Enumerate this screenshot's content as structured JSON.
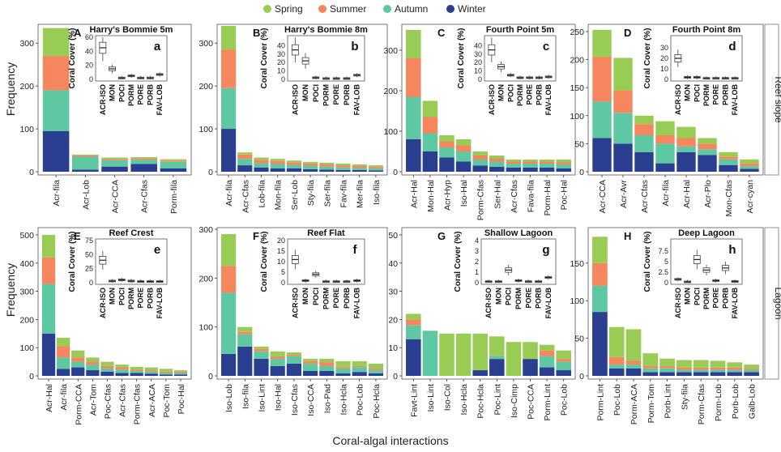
{
  "legend": [
    {
      "label": "Spring",
      "color": "#99cc55"
    },
    {
      "label": "Summer",
      "color": "#f6865e"
    },
    {
      "label": "Autumn",
      "color": "#5ec8a2"
    },
    {
      "label": "Winter",
      "color": "#2a3f8f"
    }
  ],
  "xlabel": "Coral-algal interactions",
  "ylabel": "Frequency",
  "inset_ylabel": "Coral Cover (%)",
  "row_labels": [
    "Reef slope",
    "Lagoon"
  ],
  "chart_data": [
    {
      "type": "bar",
      "letter": "A",
      "inset_letter": "a",
      "site": "Harry's Bommie 5m",
      "ylim": [
        0,
        340
      ],
      "ticks": [
        0,
        100,
        200,
        300
      ],
      "categories": [
        "Acr-fila",
        "Acr-Lob",
        "Acr-CCA",
        "Acr-Cfas",
        "Porm-fila"
      ],
      "series": [
        {
          "name": "Winter",
          "values": [
            95,
            5,
            12,
            18,
            8
          ]
        },
        {
          "name": "Autumn",
          "values": [
            95,
            30,
            15,
            10,
            15
          ]
        },
        {
          "name": "Summer",
          "values": [
            80,
            3,
            3,
            3,
            3
          ]
        },
        {
          "name": "Spring",
          "values": [
            65,
            2,
            3,
            3,
            3
          ]
        }
      ],
      "inset": {
        "categories": [
          "ACR-ISO",
          "MON",
          "POCI",
          "PORM",
          "PORE",
          "PORB",
          "FAV-LOB"
        ],
        "medians": [
          45,
          15,
          2,
          5,
          2,
          2,
          7
        ],
        "ylim": [
          0,
          60
        ],
        "ticks": [
          0,
          20,
          40,
          60
        ]
      }
    },
    {
      "type": "bar",
      "letter": "B",
      "inset_letter": "b",
      "site": "Harry's Bommie 8m",
      "ylim": [
        0,
        340
      ],
      "ticks": [
        0,
        100,
        200,
        300
      ],
      "categories": [
        "Acr-fila",
        "Acr-Cfas",
        "Lob-fila",
        "Mon-fila",
        "Ser-Lob",
        "Sty-fila",
        "Ser-fila",
        "Fav-fila",
        "Mer-fila",
        "Iso-fila"
      ],
      "series": [
        {
          "name": "Winter",
          "values": [
            100,
            15,
            10,
            8,
            8,
            6,
            5,
            4,
            4,
            3
          ]
        },
        {
          "name": "Autumn",
          "values": [
            95,
            15,
            10,
            10,
            8,
            8,
            7,
            6,
            5,
            5
          ]
        },
        {
          "name": "Summer",
          "values": [
            90,
            10,
            8,
            7,
            6,
            5,
            5,
            5,
            5,
            4
          ]
        },
        {
          "name": "Spring",
          "values": [
            55,
            5,
            5,
            5,
            4,
            4,
            4,
            4,
            3,
            3
          ]
        }
      ],
      "inset": {
        "categories": [
          "ACR-ISO",
          "MON",
          "POCI",
          "PORM",
          "PORE",
          "PORB",
          "FAV-LOB"
        ],
        "medians": [
          35,
          22,
          2,
          1,
          1,
          1,
          5
        ],
        "ylim": [
          0,
          50
        ],
        "ticks": [
          0,
          10,
          20,
          30,
          40
        ]
      }
    },
    {
      "type": "bar",
      "letter": "C",
      "inset_letter": "c",
      "site": "Fourth Point 5m",
      "ylim": [
        0,
        360
      ],
      "ticks": [
        0,
        100,
        200,
        300
      ],
      "categories": [
        "Acr-Hal",
        "Mon-Hal",
        "Acr-Hyp",
        "Iso-Hal",
        "Porm-Cfas",
        "Ser-Hal",
        "Acr-Cfas",
        "Fava-fila",
        "Porm-Hal",
        "Poc-Hal"
      ],
      "series": [
        {
          "name": "Winter",
          "values": [
            80,
            50,
            35,
            25,
            15,
            12,
            10,
            10,
            10,
            8
          ]
        },
        {
          "name": "Autumn",
          "values": [
            105,
            45,
            25,
            25,
            15,
            13,
            10,
            10,
            10,
            10
          ]
        },
        {
          "name": "Summer",
          "values": [
            95,
            40,
            15,
            15,
            10,
            8,
            5,
            5,
            5,
            5
          ]
        },
        {
          "name": "Spring",
          "values": [
            70,
            40,
            15,
            15,
            10,
            7,
            5,
            5,
            5,
            7
          ]
        }
      ],
      "inset": {
        "categories": [
          "ACR-ISO",
          "MON",
          "POCI",
          "PORM",
          "PORE",
          "PORB",
          "FAV-LOB"
        ],
        "medians": [
          35,
          15,
          5,
          2,
          2,
          2,
          3
        ],
        "ylim": [
          0,
          50
        ],
        "ticks": [
          0,
          10,
          20,
          30,
          40
        ]
      }
    },
    {
      "type": "bar",
      "letter": "D",
      "inset_letter": "d",
      "site": "Fourth Point 8m",
      "ylim": [
        0,
        260
      ],
      "ticks": [
        0,
        50,
        100,
        150,
        200,
        250
      ],
      "categories": [
        "Acr-CCA",
        "Acr-Avr",
        "Acr-Cfas",
        "Acr-fila",
        "Acr-Hal",
        "Acr-Plo",
        "Mon-Cfas",
        "Acr-cyan"
      ],
      "series": [
        {
          "name": "Winter",
          "values": [
            60,
            50,
            35,
            15,
            35,
            30,
            12,
            5
          ]
        },
        {
          "name": "Autumn",
          "values": [
            65,
            55,
            30,
            35,
            10,
            10,
            10,
            5
          ]
        },
        {
          "name": "Summer",
          "values": [
            80,
            40,
            20,
            15,
            15,
            10,
            5,
            5
          ]
        },
        {
          "name": "Spring",
          "values": [
            48,
            58,
            15,
            25,
            20,
            10,
            8,
            7
          ]
        }
      ],
      "inset": {
        "categories": [
          "ACR-ISO",
          "MON",
          "POCI",
          "PORM",
          "PORE",
          "PORB",
          "FAV-LOB"
        ],
        "medians": [
          20,
          2,
          2,
          1,
          1,
          1,
          1
        ],
        "ylim": [
          0,
          40
        ],
        "ticks": [
          0,
          10,
          20,
          30
        ]
      }
    },
    {
      "type": "bar",
      "letter": "E",
      "inset_letter": "e",
      "site": "Reef Crest",
      "ylim": [
        0,
        520
      ],
      "ticks": [
        0,
        100,
        200,
        300,
        400,
        500
      ],
      "categories": [
        "Acr-Hal",
        "Acr-fila",
        "Porm-CCA",
        "Acr-Tom",
        "Poc-Cfas",
        "Acr-Cfas",
        "Porm-Cfas",
        "Acr-ACA",
        "Poc-Tom",
        "Poc-Hal"
      ],
      "series": [
        {
          "name": "Winter",
          "values": [
            150,
            25,
            30,
            20,
            15,
            10,
            10,
            8,
            5,
            5
          ]
        },
        {
          "name": "Autumn",
          "values": [
            175,
            40,
            20,
            20,
            12,
            12,
            7,
            7,
            5,
            5
          ]
        },
        {
          "name": "Summer",
          "values": [
            95,
            40,
            15,
            10,
            8,
            8,
            5,
            5,
            5,
            5
          ]
        },
        {
          "name": "Spring",
          "values": [
            80,
            30,
            25,
            15,
            15,
            10,
            10,
            10,
            10,
            5
          ]
        }
      ],
      "inset": {
        "categories": [
          "ACR-ISO",
          "MON",
          "POCI",
          "PORM",
          "PORE",
          "PORB",
          "FAV-LOB"
        ],
        "medians": [
          40,
          3,
          5,
          3,
          2,
          2,
          2
        ],
        "ylim": [
          0,
          75
        ],
        "ticks": [
          0,
          25,
          50,
          75
        ]
      }
    },
    {
      "type": "bar",
      "letter": "F",
      "inset_letter": "f",
      "site": "Reef Flat",
      "ylim": [
        0,
        300
      ],
      "ticks": [
        0,
        100,
        200,
        300
      ],
      "categories": [
        "Iso-Lob",
        "Iso-fila",
        "Iso-Lint",
        "Iso-Hal",
        "Iso-Cfas",
        "Iso-CCA",
        "Iso-Pad",
        "Iso-Hcla",
        "Poc-Lob",
        "Poc-Hcla"
      ],
      "series": [
        {
          "name": "Winter",
          "values": [
            45,
            60,
            35,
            20,
            25,
            10,
            10,
            5,
            8,
            5
          ]
        },
        {
          "name": "Autumn",
          "values": [
            125,
            25,
            15,
            15,
            15,
            15,
            10,
            10,
            10,
            7
          ]
        },
        {
          "name": "Summer",
          "values": [
            55,
            5,
            5,
            5,
            3,
            5,
            8,
            3,
            2,
            3
          ]
        },
        {
          "name": "Spring",
          "values": [
            65,
            10,
            5,
            10,
            5,
            5,
            7,
            12,
            10,
            10
          ]
        }
      ],
      "inset": {
        "categories": [
          "ACR-ISO",
          "MON",
          "POCI",
          "PORM",
          "PORE",
          "PORB",
          "FAV-LOB"
        ],
        "medians": [
          11,
          1,
          4,
          0.5,
          0.5,
          0.5,
          1
        ],
        "ylim": [
          0,
          20
        ],
        "ticks": [
          0,
          5,
          10,
          15,
          20
        ]
      }
    },
    {
      "type": "bar",
      "letter": "G",
      "inset_letter": "g",
      "site": "Shallow Lagoon",
      "ylim": [
        0,
        52
      ],
      "ticks": [
        0,
        10,
        20,
        30,
        40,
        50
      ],
      "categories": [
        "Favt-Lint",
        "Iso-Lint",
        "Iso-Col",
        "Iso-Hcla",
        "Poc-Hcla",
        "Poc-Lint",
        "Iso-Cimp",
        "Poc-CCA",
        "Porm-Lint",
        "Poc-Lob"
      ],
      "series": [
        {
          "name": "Winter",
          "values": [
            13,
            0,
            0,
            0,
            2,
            6,
            0,
            6,
            3,
            2
          ]
        },
        {
          "name": "Autumn",
          "values": [
            5,
            16,
            0,
            0,
            0,
            1,
            0,
            0,
            4,
            3
          ]
        },
        {
          "name": "Summer",
          "values": [
            2,
            0,
            0,
            0,
            0,
            0,
            0,
            0,
            2,
            1
          ]
        },
        {
          "name": "Spring",
          "values": [
            2,
            0,
            15,
            15,
            13,
            7,
            12,
            6,
            2,
            3
          ]
        }
      ],
      "inset": {
        "categories": [
          "ACR-ISO",
          "MON",
          "POCI",
          "PORM",
          "PORE",
          "PORB",
          "FAV-LOB"
        ],
        "medians": [
          0.1,
          0.1,
          1.2,
          0.2,
          0.1,
          0.1,
          0.5
        ],
        "ylim": [
          0,
          4
        ],
        "ticks": [
          0,
          1,
          2,
          3,
          4
        ]
      }
    },
    {
      "type": "bar",
      "letter": "H",
      "inset_letter": "h",
      "site": "Deep Lagoon",
      "ylim": [
        0,
        195
      ],
      "ticks": [
        0,
        50,
        100,
        150
      ],
      "categories": [
        "Porm-Lint",
        "Poc-Lob",
        "Porm-ACA",
        "Porm-Tom",
        "Porb-Lint",
        "Sty-fila",
        "Porm-Cfas",
        "Porm-Lob",
        "Porb-Lob",
        "Galb-Lob"
      ],
      "series": [
        {
          "name": "Winter",
          "values": [
            85,
            10,
            10,
            5,
            5,
            5,
            5,
            5,
            5,
            5
          ]
        },
        {
          "name": "Autumn",
          "values": [
            35,
            5,
            5,
            5,
            5,
            3,
            3,
            3,
            3,
            3
          ]
        },
        {
          "name": "Summer",
          "values": [
            30,
            10,
            5,
            3,
            3,
            3,
            3,
            3,
            3,
            2
          ]
        },
        {
          "name": "Spring",
          "values": [
            35,
            40,
            42,
            17,
            10,
            10,
            10,
            9,
            7,
            5
          ]
        }
      ],
      "inset": {
        "categories": [
          "ACR-ISO",
          "MON",
          "POCI",
          "PORM",
          "PORE",
          "PORB",
          "FAV-LOB"
        ],
        "medians": [
          0.8,
          0.2,
          5.5,
          3,
          0.5,
          3.5,
          0.3
        ],
        "ylim": [
          0,
          10
        ],
        "ticks": [
          0,
          2.5,
          5.0,
          7.5
        ]
      }
    }
  ]
}
